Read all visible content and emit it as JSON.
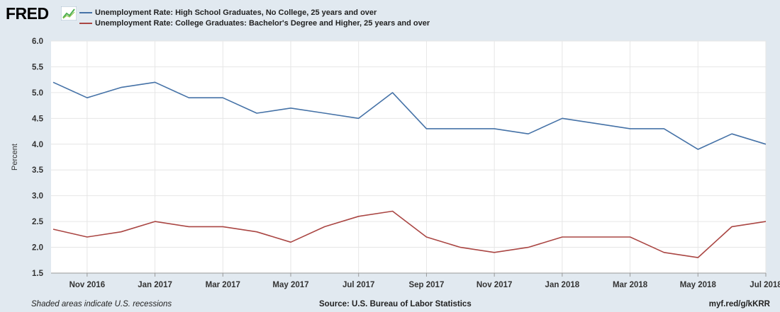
{
  "header": {
    "logo_text": "FRED",
    "logo_icon": "trend-line-icon"
  },
  "colors": {
    "background": "#e1e9f0",
    "plot_background": "#ffffff",
    "series1": "#4572a7",
    "series2": "#aa4643",
    "grid": "#e6e6e6"
  },
  "chart_data": {
    "type": "line",
    "ylabel": "Percent",
    "ylim": [
      1.5,
      6.0
    ],
    "yticks": [
      "1.5",
      "2.0",
      "2.5",
      "3.0",
      "3.5",
      "4.0",
      "4.5",
      "5.0",
      "5.5",
      "6.0"
    ],
    "x": [
      "2016-10",
      "2016-11",
      "2016-12",
      "2017-01",
      "2017-02",
      "2017-03",
      "2017-04",
      "2017-05",
      "2017-06",
      "2017-07",
      "2017-08",
      "2017-09",
      "2017-10",
      "2017-11",
      "2017-12",
      "2018-01",
      "2018-02",
      "2018-03",
      "2018-04",
      "2018-05",
      "2018-06",
      "2018-07"
    ],
    "xticks": [
      "Nov 2016",
      "Jan 2017",
      "Mar 2017",
      "May 2017",
      "Jul 2017",
      "Sep 2017",
      "Nov 2017",
      "Jan 2018",
      "Mar 2018",
      "May 2018",
      "Jul 2018"
    ],
    "xtick_positions": [
      "2016-11",
      "2017-01",
      "2017-03",
      "2017-05",
      "2017-07",
      "2017-09",
      "2017-11",
      "2018-01",
      "2018-03",
      "2018-05",
      "2018-07"
    ],
    "grid": true,
    "legend_placement": "top-left",
    "series": [
      {
        "name": "Unemployment Rate: High School Graduates, No College, 25 years and over",
        "color": "#4572a7",
        "values": [
          5.2,
          4.9,
          5.1,
          5.2,
          4.9,
          4.9,
          4.6,
          4.7,
          4.6,
          4.5,
          5.0,
          4.3,
          4.3,
          4.3,
          4.2,
          4.5,
          4.4,
          4.3,
          4.3,
          3.9,
          4.2,
          4.0
        ]
      },
      {
        "name": "Unemployment Rate: College Graduates: Bachelor's Degree and Higher, 25 years and over",
        "color": "#aa4643",
        "values": [
          2.35,
          2.2,
          2.3,
          2.5,
          2.4,
          2.4,
          2.3,
          2.1,
          2.4,
          2.6,
          2.7,
          2.2,
          2.0,
          1.9,
          2.0,
          2.2,
          2.2,
          2.2,
          1.9,
          1.8,
          2.4,
          2.5
        ]
      }
    ]
  },
  "footer": {
    "note": "Shaded areas indicate U.S. recessions",
    "source": "Source: U.S. Bureau of Labor Statistics",
    "link": "myf.red/g/kKRR"
  }
}
